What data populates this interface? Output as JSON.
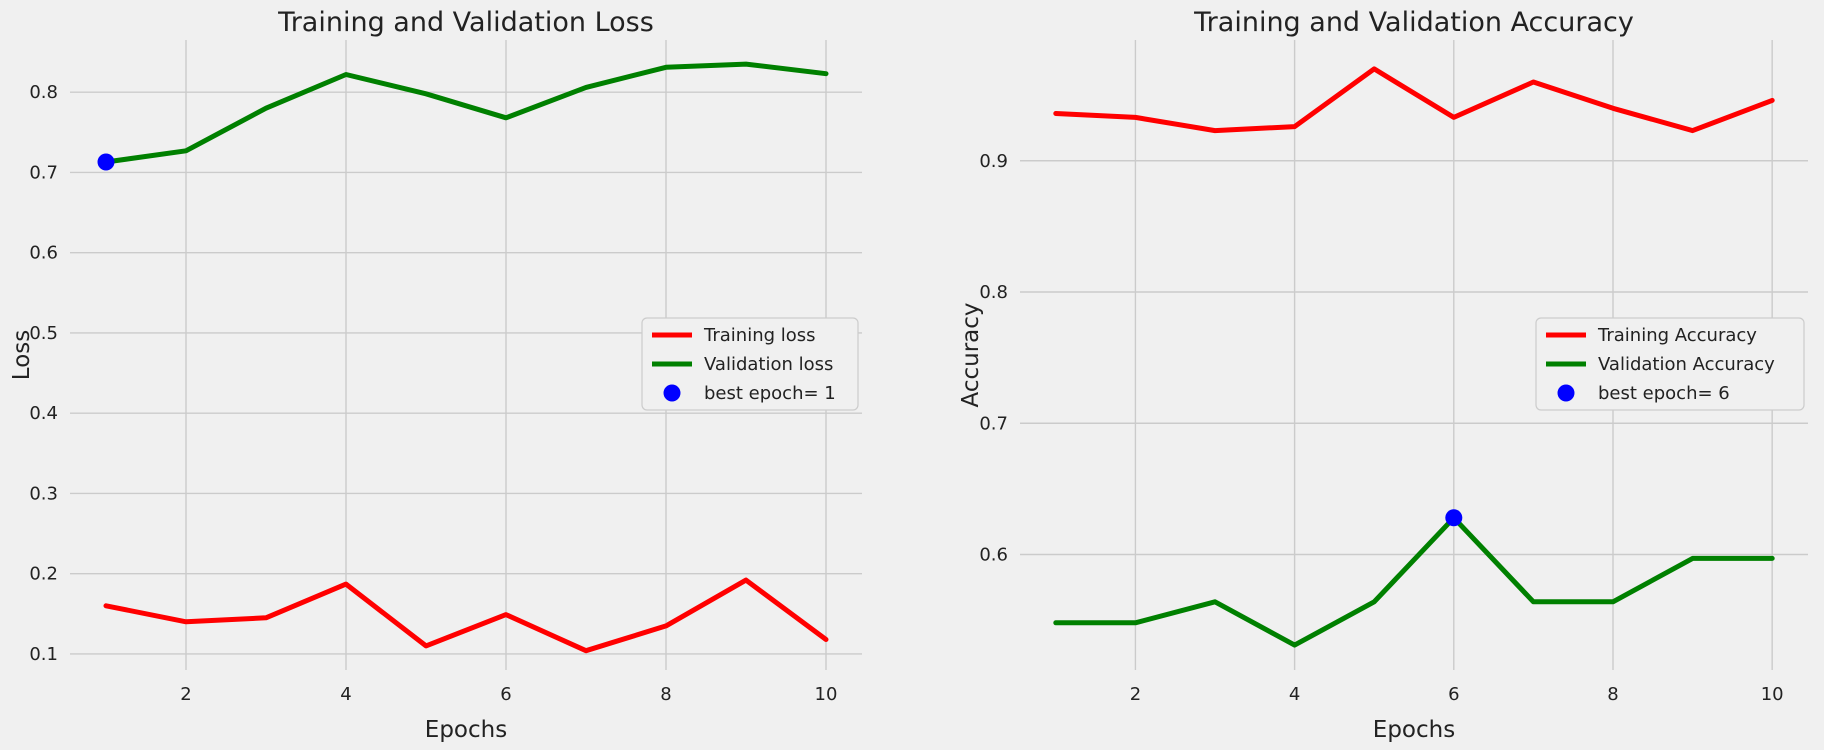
{
  "chart_data": [
    {
      "type": "line",
      "title": "Training and Validation Loss",
      "xlabel": "Epochs",
      "ylabel": "Loss",
      "x": [
        1,
        2,
        3,
        4,
        5,
        6,
        7,
        8,
        9,
        10
      ],
      "xlim": [
        0.55,
        10.45
      ],
      "ylim": [
        0.08,
        0.865
      ],
      "xticks": [
        2,
        4,
        6,
        8,
        10
      ],
      "yticks": [
        0.1,
        0.2,
        0.3,
        0.4,
        0.5,
        0.6,
        0.7,
        0.8
      ],
      "grid": true,
      "legend_position": "center-right",
      "series": [
        {
          "name": "Training loss",
          "color": "#ff0000",
          "values": [
            0.16,
            0.14,
            0.145,
            0.187,
            0.11,
            0.149,
            0.104,
            0.135,
            0.192,
            0.118
          ]
        },
        {
          "name": "Validation loss",
          "color": "#008000",
          "values": [
            0.713,
            0.727,
            0.78,
            0.822,
            0.798,
            0.768,
            0.806,
            0.831,
            0.835,
            0.823
          ]
        }
      ],
      "marker": {
        "label": "best epoch= 1",
        "x": 1,
        "y": 0.713,
        "color": "#0000ff"
      }
    },
    {
      "type": "line",
      "title": "Training and Validation Accuracy",
      "xlabel": "Epochs",
      "ylabel": "Accuracy",
      "x": [
        1,
        2,
        3,
        4,
        5,
        6,
        7,
        8,
        9,
        10
      ],
      "xlim": [
        0.55,
        10.45
      ],
      "ylim": [
        0.512,
        0.992
      ],
      "xticks": [
        2,
        4,
        6,
        8,
        10
      ],
      "yticks": [
        0.6,
        0.7,
        0.8,
        0.9
      ],
      "grid": true,
      "legend_position": "center-right",
      "series": [
        {
          "name": "Training Accuracy",
          "color": "#ff0000",
          "values": [
            0.936,
            0.933,
            0.923,
            0.926,
            0.97,
            0.933,
            0.96,
            0.94,
            0.923,
            0.946
          ]
        },
        {
          "name": "Validation Accuracy",
          "color": "#008000",
          "values": [
            0.548,
            0.548,
            0.564,
            0.531,
            0.564,
            0.628,
            0.564,
            0.564,
            0.597,
            0.597
          ]
        }
      ],
      "marker": {
        "label": "best epoch= 6",
        "x": 6,
        "y": 0.628,
        "color": "#0000ff"
      }
    }
  ]
}
